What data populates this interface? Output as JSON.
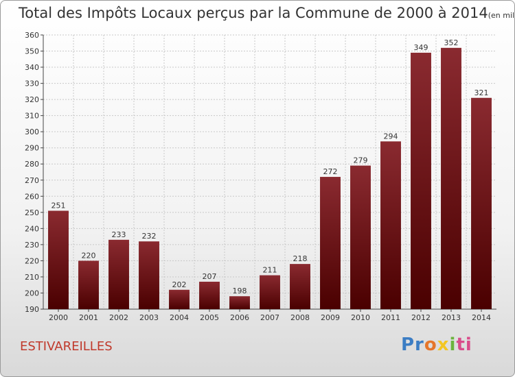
{
  "title": "Total des Impôts Locaux perçus par la Commune de 2000 à 2014",
  "unit_note": "(en milliers d'€)",
  "commune": "ESTIVAREILLES",
  "logo": {
    "parts": [
      "Pr",
      "o",
      "x",
      "i",
      "ti"
    ]
  },
  "colors": {
    "bar_top": "#8a2a30",
    "bar_bottom": "#4a0000",
    "grid": "#c8c8c8",
    "text": "#333333"
  },
  "chart_data": {
    "type": "bar",
    "title": "Total des Impôts Locaux perçus par la Commune de 2000 à 2014",
    "categories": [
      "2000",
      "2001",
      "2002",
      "2003",
      "2004",
      "2005",
      "2006",
      "2007",
      "2008",
      "2009",
      "2010",
      "2011",
      "2012",
      "2013",
      "2014"
    ],
    "values": [
      251,
      220,
      233,
      232,
      202,
      207,
      198,
      211,
      218,
      272,
      279,
      294,
      349,
      352,
      321
    ],
    "ylim": [
      190,
      360
    ],
    "yticks": [
      190,
      200,
      210,
      220,
      230,
      240,
      250,
      260,
      270,
      280,
      290,
      300,
      310,
      320,
      330,
      340,
      350,
      360
    ],
    "grid": true,
    "xlabel": "",
    "ylabel": ""
  }
}
